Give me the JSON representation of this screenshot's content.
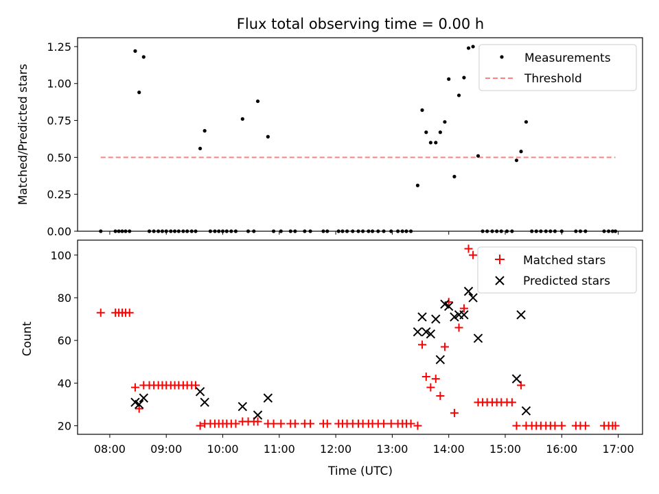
{
  "chart_data": [
    {
      "type": "scatter",
      "title": "Flux total observing time = 0.00 h",
      "xlabel": "",
      "ylabel": "Matched/Predicted stars",
      "xlim": [
        7.43,
        17.43
      ],
      "ylim": [
        0,
        1.31
      ],
      "yticks": [
        0,
        0.25,
        0.5,
        0.75,
        1.0,
        1.25
      ],
      "ytick_labels": [
        "0.00",
        "0.25",
        "0.50",
        "0.75",
        "1.00",
        "1.25"
      ],
      "legend": "top-right",
      "series": [
        {
          "name": "Measurements",
          "marker": "dot",
          "color": "#000000",
          "x": [
            7.84,
            8.1,
            8.16,
            8.22,
            8.28,
            8.35,
            8.45,
            8.52,
            8.6,
            8.7,
            8.78,
            8.86,
            8.93,
            9.0,
            9.08,
            9.15,
            9.22,
            9.3,
            9.37,
            9.45,
            9.52,
            9.6,
            9.68,
            9.78,
            9.86,
            9.93,
            10.0,
            10.07,
            10.15,
            10.23,
            10.35,
            10.45,
            10.55,
            10.62,
            10.8,
            10.9,
            11.03,
            11.2,
            11.28,
            11.45,
            11.55,
            11.78,
            11.85,
            12.05,
            12.12,
            12.2,
            12.3,
            12.4,
            12.48,
            12.58,
            12.65,
            12.75,
            12.85,
            12.98,
            13.1,
            13.18,
            13.25,
            13.33,
            13.45,
            13.53,
            13.6,
            13.68,
            13.77,
            13.85,
            13.93,
            14.0,
            14.1,
            14.18,
            14.27,
            14.35,
            14.43,
            14.52,
            14.6,
            14.68,
            14.77,
            14.85,
            14.93,
            15.03,
            15.12,
            15.2,
            15.28,
            15.37,
            15.47,
            15.55,
            15.63,
            15.72,
            15.8,
            15.88,
            16.0,
            16.25,
            16.33,
            16.42,
            16.75,
            16.83,
            16.9,
            16.95
          ],
          "y": [
            0.0,
            0.0,
            0.0,
            0.0,
            0.0,
            0.0,
            1.22,
            0.94,
            1.18,
            0.0,
            0.0,
            0.0,
            0.0,
            0.0,
            0.0,
            0.0,
            0.0,
            0.0,
            0.0,
            0.0,
            0.0,
            0.56,
            0.68,
            0.0,
            0.0,
            0.0,
            0.0,
            0.0,
            0.0,
            0.0,
            0.76,
            0.0,
            0.0,
            0.88,
            0.64,
            0.0,
            0.0,
            0.0,
            0.0,
            0.0,
            0.0,
            0.0,
            0.0,
            0.0,
            0.0,
            0.0,
            0.0,
            0.0,
            0.0,
            0.0,
            0.0,
            0.0,
            0.0,
            0.0,
            0.0,
            0.0,
            0.0,
            0.0,
            0.31,
            0.82,
            0.67,
            0.6,
            0.6,
            0.67,
            0.74,
            1.03,
            0.37,
            0.92,
            1.04,
            1.24,
            1.25,
            0.51,
            0.0,
            0.0,
            0.0,
            0.0,
            0.0,
            0.0,
            0.0,
            0.48,
            0.54,
            0.74,
            0.0,
            0.0,
            0.0,
            0.0,
            0.0,
            0.0,
            0.0,
            0.0,
            0.0,
            0.0,
            0.0,
            0.0,
            0.0,
            0.0
          ]
        },
        {
          "name": "Threshold",
          "marker": "dashed-line",
          "color": "#ff8080",
          "x": [
            7.84,
            16.95
          ],
          "y": [
            0.5,
            0.5
          ]
        }
      ]
    },
    {
      "type": "scatter",
      "title": "",
      "xlabel": "Time (UTC)",
      "ylabel": "Count",
      "xlim": [
        7.43,
        17.43
      ],
      "ylim": [
        16,
        107
      ],
      "yticks": [
        20,
        40,
        60,
        80,
        100
      ],
      "ytick_labels": [
        "20",
        "40",
        "60",
        "80",
        "100"
      ],
      "xticks": [
        8,
        9,
        10,
        11,
        12,
        13,
        14,
        15,
        16,
        17
      ],
      "xtick_labels": [
        "08:00",
        "09:00",
        "10:00",
        "11:00",
        "12:00",
        "13:00",
        "14:00",
        "15:00",
        "16:00",
        "17:00"
      ],
      "legend": "top-right",
      "series": [
        {
          "name": "Matched stars",
          "marker": "plus",
          "color": "#ff0000",
          "x": [
            7.84,
            8.1,
            8.16,
            8.22,
            8.28,
            8.35,
            8.45,
            8.52,
            8.6,
            8.7,
            8.78,
            8.86,
            8.93,
            9.0,
            9.08,
            9.15,
            9.22,
            9.3,
            9.37,
            9.45,
            9.52,
            9.6,
            9.68,
            9.78,
            9.86,
            9.93,
            10.0,
            10.07,
            10.15,
            10.23,
            10.35,
            10.45,
            10.55,
            10.62,
            10.8,
            10.9,
            11.03,
            11.2,
            11.28,
            11.45,
            11.55,
            11.78,
            11.85,
            12.05,
            12.12,
            12.2,
            12.3,
            12.4,
            12.48,
            12.58,
            12.65,
            12.75,
            12.85,
            12.98,
            13.1,
            13.18,
            13.25,
            13.33,
            13.45,
            13.53,
            13.6,
            13.68,
            13.77,
            13.85,
            13.93,
            14.0,
            14.1,
            14.18,
            14.27,
            14.35,
            14.43,
            14.52,
            14.6,
            14.68,
            14.77,
            14.85,
            14.93,
            15.03,
            15.12,
            15.2,
            15.28,
            15.37,
            15.47,
            15.55,
            15.63,
            15.72,
            15.8,
            15.88,
            16.0,
            16.25,
            16.33,
            16.42,
            16.75,
            16.83,
            16.9,
            16.95
          ],
          "y": [
            73,
            73,
            73,
            73,
            73,
            73,
            38,
            28,
            39,
            39,
            39,
            39,
            39,
            39,
            39,
            39,
            39,
            39,
            39,
            39,
            39,
            20,
            21,
            21,
            21,
            21,
            21,
            21,
            21,
            21,
            22,
            22,
            22,
            22,
            21,
            21,
            21,
            21,
            21,
            21,
            21,
            21,
            21,
            21,
            21,
            21,
            21,
            21,
            21,
            21,
            21,
            21,
            21,
            21,
            21,
            21,
            21,
            21,
            20,
            58,
            43,
            38,
            42,
            34,
            57,
            78,
            26,
            66,
            75,
            103,
            100,
            31,
            31,
            31,
            31,
            31,
            31,
            31,
            31,
            20,
            39,
            20,
            20,
            20,
            20,
            20,
            20,
            20,
            20,
            20,
            20,
            20,
            20,
            20,
            20,
            20
          ]
        },
        {
          "name": "Predicted stars",
          "marker": "x",
          "color": "#000000",
          "x": [
            8.45,
            8.52,
            8.6,
            9.6,
            9.68,
            10.35,
            10.62,
            10.8,
            13.45,
            13.53,
            13.6,
            13.68,
            13.77,
            13.85,
            13.93,
            14.0,
            14.1,
            14.18,
            14.27,
            14.35,
            14.43,
            14.52,
            15.2,
            15.28,
            15.37
          ],
          "y": [
            31,
            30,
            33,
            36,
            31,
            29,
            25,
            33,
            64,
            71,
            64,
            63,
            70,
            51,
            77,
            76,
            71,
            72,
            72,
            83,
            80,
            61,
            42,
            72,
            27
          ]
        }
      ]
    }
  ]
}
